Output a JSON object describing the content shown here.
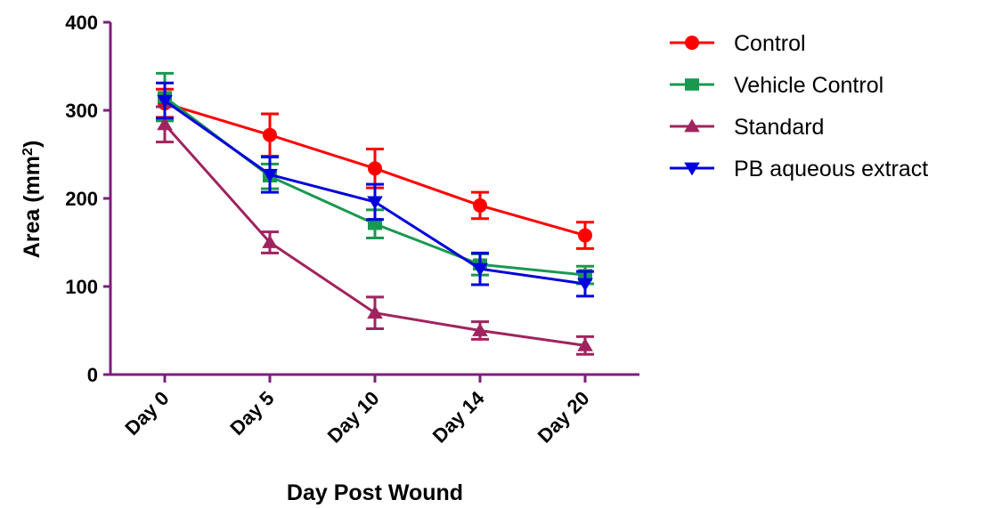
{
  "chart_data": {
    "type": "line",
    "categories": [
      "Day 0",
      "Day 5",
      "Day 10",
      "Day 14",
      "Day 20"
    ],
    "xlabel": "Day Post Wound",
    "ylabel": "Area (mm",
    "ylabel_sup": "2",
    "ylabel_close": ")",
    "ylim": [
      0,
      400
    ],
    "yticks": [
      0,
      100,
      200,
      300,
      400
    ],
    "grid": false,
    "legend_position": "right",
    "axis_color": "#7a1f7a",
    "series": [
      {
        "name": "Control",
        "color": "#ff0000",
        "marker": "circle",
        "values": [
          308,
          272,
          234,
          192,
          158
        ],
        "errors": [
          16,
          24,
          22,
          15,
          15
        ]
      },
      {
        "name": "Vehicle Control",
        "color": "#1a9850",
        "marker": "square",
        "values": [
          315,
          225,
          171,
          125,
          113
        ],
        "errors": [
          27,
          14,
          16,
          12,
          10
        ]
      },
      {
        "name": "Standard",
        "color": "#a0235f",
        "marker": "triangle-up",
        "values": [
          284,
          150,
          70,
          50,
          33
        ],
        "errors": [
          20,
          12,
          18,
          10,
          10
        ]
      },
      {
        "name": "PB aqueous extract",
        "color": "#0000dd",
        "marker": "triangle-down",
        "values": [
          311,
          227,
          196,
          120,
          103
        ],
        "errors": [
          20,
          20,
          20,
          18,
          14
        ]
      }
    ]
  }
}
